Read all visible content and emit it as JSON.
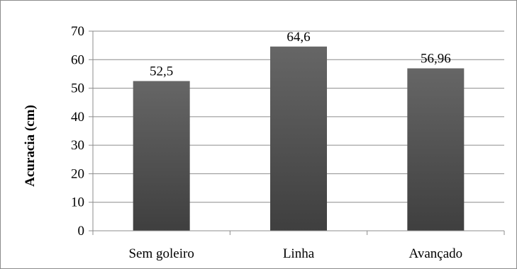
{
  "chart_data": {
    "type": "bar",
    "title": "",
    "xlabel": "",
    "ylabel": "Acuracia (cm)",
    "categories": [
      "Sem goleiro",
      "Linha",
      "Avançado"
    ],
    "values": [
      52.5,
      64.6,
      56.96
    ],
    "value_labels": [
      "52,5",
      "64,6",
      "56,96"
    ],
    "ylim": [
      0,
      70
    ],
    "yticks": [
      0,
      10,
      20,
      30,
      40,
      50,
      60,
      70
    ],
    "grid": true,
    "legend": "none",
    "bar_color_top": "#666666",
    "bar_color_bottom": "#3f3f3f"
  }
}
